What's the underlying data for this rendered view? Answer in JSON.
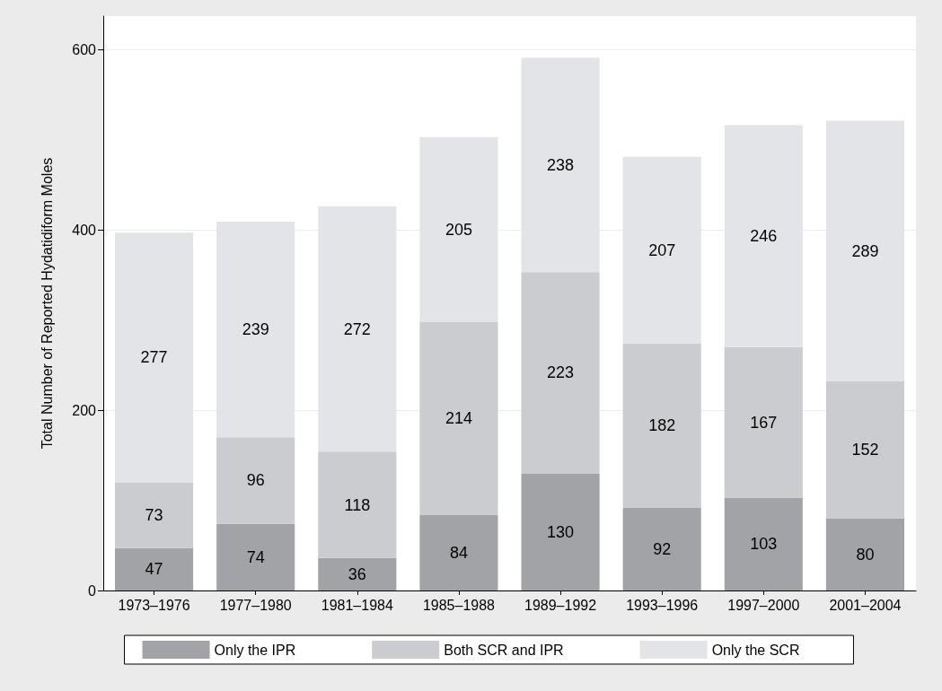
{
  "chart_data": {
    "type": "bar",
    "stacked": true,
    "ylabel": "Total Number of Reported Hydatidiform Moles",
    "categories": [
      "1973–1976",
      "1977–1980",
      "1981–1984",
      "1985–1988",
      "1989–1992",
      "1993–1996",
      "1997–2000",
      "2001–2004"
    ],
    "series": [
      {
        "name": "Only the IPR",
        "color": "#a2a3a7",
        "values": [
          47,
          74,
          36,
          84,
          130,
          92,
          103,
          80
        ]
      },
      {
        "name": "Both SCR and IPR",
        "color": "#cbccd0",
        "values": [
          73,
          96,
          118,
          214,
          223,
          182,
          167,
          152
        ]
      },
      {
        "name": "Only the SCR",
        "color": "#e3e4e8",
        "values": [
          277,
          239,
          272,
          205,
          238,
          207,
          246,
          289
        ]
      }
    ],
    "ylim": [
      0,
      637
    ],
    "yticks": [
      0,
      200,
      400,
      600
    ],
    "grid": "y",
    "legend": "bottom",
    "data_labels": true
  }
}
